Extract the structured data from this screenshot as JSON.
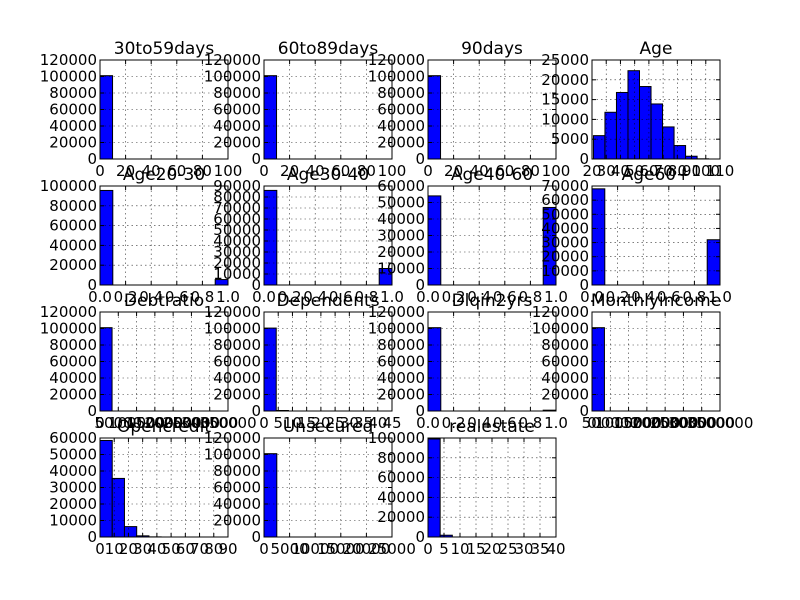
{
  "figure": {
    "background": "#ffffff",
    "bar_color": "#0000ff",
    "edge_color": "#000000",
    "grid": true
  },
  "chart_data": [
    {
      "type": "bar",
      "title": "30to59days",
      "xlabel": "",
      "ylabel": "",
      "xlim": [
        0,
        100
      ],
      "ylim": [
        0,
        120000
      ],
      "xticks": [
        "0",
        "20",
        "40",
        "60",
        "80",
        "100"
      ],
      "yticks": [
        "0",
        "20000",
        "40000",
        "60000",
        "80000",
        "100000",
        "120000"
      ],
      "bins": [
        {
          "x0": 0,
          "x1": 9.8,
          "y": 101000
        },
        {
          "x0": 88.2,
          "x1": 98,
          "y": 0
        }
      ]
    },
    {
      "type": "bar",
      "title": "60to89days",
      "xlabel": "",
      "ylabel": "",
      "xlim": [
        0,
        100
      ],
      "ylim": [
        0,
        120000
      ],
      "xticks": [
        "0",
        "20",
        "40",
        "60",
        "80",
        "100"
      ],
      "yticks": [
        "0",
        "20000",
        "40000",
        "60000",
        "80000",
        "100000",
        "120000"
      ],
      "bins": [
        {
          "x0": 0,
          "x1": 9.8,
          "y": 101000
        },
        {
          "x0": 88.2,
          "x1": 98,
          "y": 0
        }
      ]
    },
    {
      "type": "bar",
      "title": "90days",
      "xlabel": "",
      "ylabel": "",
      "xlim": [
        0,
        100
      ],
      "ylim": [
        0,
        120000
      ],
      "xticks": [
        "0",
        "20",
        "40",
        "60",
        "80",
        "100"
      ],
      "yticks": [
        "0",
        "20000",
        "40000",
        "60000",
        "80000",
        "100000",
        "120000"
      ],
      "bins": [
        {
          "x0": 0,
          "x1": 9.8,
          "y": 101000
        },
        {
          "x0": 88.2,
          "x1": 98,
          "y": 0
        }
      ]
    },
    {
      "type": "bar",
      "title": "Age",
      "xlabel": "",
      "ylabel": "",
      "xlim": [
        20,
        110
      ],
      "ylim": [
        0,
        25000
      ],
      "xticks": [
        "20",
        "30",
        "40",
        "50",
        "60",
        "70",
        "80",
        "90",
        "100",
        "110"
      ],
      "yticks": [
        "0",
        "5000",
        "10000",
        "15000",
        "20000",
        "25000"
      ],
      "bins": [
        {
          "x0": 21,
          "x1": 29.1,
          "y": 5900
        },
        {
          "x0": 29.1,
          "x1": 37.2,
          "y": 11800
        },
        {
          "x0": 37.2,
          "x1": 45.3,
          "y": 16800
        },
        {
          "x0": 45.3,
          "x1": 53.4,
          "y": 22300
        },
        {
          "x0": 53.4,
          "x1": 61.5,
          "y": 18300
        },
        {
          "x0": 61.5,
          "x1": 69.6,
          "y": 13900
        },
        {
          "x0": 69.6,
          "x1": 77.7,
          "y": 8100
        },
        {
          "x0": 77.7,
          "x1": 85.8,
          "y": 3400
        },
        {
          "x0": 85.8,
          "x1": 93.9,
          "y": 700
        },
        {
          "x0": 93.9,
          "x1": 102,
          "y": 50
        }
      ]
    },
    {
      "type": "bar",
      "title": "Age20-30",
      "xlabel": "",
      "ylabel": "",
      "xlim": [
        0,
        1
      ],
      "ylim": [
        0,
        100000
      ],
      "xticks": [
        "0.0",
        "0.2",
        "0.4",
        "0.6",
        "0.8",
        "1.0"
      ],
      "yticks": [
        "0",
        "20000",
        "40000",
        "60000",
        "80000",
        "100000"
      ],
      "bins": [
        {
          "x0": 0,
          "x1": 0.1,
          "y": 95500
        },
        {
          "x0": 0.9,
          "x1": 1.0,
          "y": 5500
        }
      ]
    },
    {
      "type": "bar",
      "title": "Age30-40",
      "xlabel": "",
      "ylabel": "",
      "xlim": [
        0,
        1
      ],
      "ylim": [
        0,
        90000
      ],
      "xticks": [
        "0.0",
        "0.2",
        "0.4",
        "0.6",
        "0.8",
        "1.0"
      ],
      "yticks": [
        "0",
        "10000",
        "20000",
        "30000",
        "40000",
        "50000",
        "60000",
        "70000",
        "80000",
        "90000"
      ],
      "bins": [
        {
          "x0": 0,
          "x1": 0.1,
          "y": 86000
        },
        {
          "x0": 0.9,
          "x1": 1.0,
          "y": 15000
        }
      ]
    },
    {
      "type": "bar",
      "title": "Age40-60",
      "xlabel": "",
      "ylabel": "",
      "xlim": [
        0,
        1
      ],
      "ylim": [
        0,
        60000
      ],
      "xticks": [
        "0.0",
        "0.2",
        "0.4",
        "0.6",
        "0.8",
        "1.0"
      ],
      "yticks": [
        "0",
        "10000",
        "20000",
        "30000",
        "40000",
        "50000",
        "60000"
      ],
      "bins": [
        {
          "x0": 0,
          "x1": 0.1,
          "y": 54000
        },
        {
          "x0": 0.9,
          "x1": 1.0,
          "y": 47000
        }
      ]
    },
    {
      "type": "bar",
      "title": "Age60+",
      "xlabel": "",
      "ylabel": "",
      "xlim": [
        0,
        1
      ],
      "ylim": [
        0,
        70000
      ],
      "xticks": [
        "0.0",
        "0.2",
        "0.4",
        "0.6",
        "0.8",
        "1.0"
      ],
      "yticks": [
        "0",
        "10000",
        "20000",
        "30000",
        "40000",
        "50000",
        "60000",
        "70000"
      ],
      "bins": [
        {
          "x0": 0,
          "x1": 0.1,
          "y": 68000
        },
        {
          "x0": 0.9,
          "x1": 1.0,
          "y": 32000
        }
      ]
    },
    {
      "type": "bar",
      "title": "Debtratio",
      "xlabel": "",
      "ylabel": "",
      "xlim": [
        0,
        350000
      ],
      "ylim": [
        0,
        120000
      ],
      "xticks": [
        "0",
        "50000",
        "100000",
        "150000",
        "200000",
        "250000",
        "300000",
        "350000"
      ],
      "yticks": [
        "0",
        "20000",
        "40000",
        "60000",
        "80000",
        "100000",
        "120000"
      ],
      "bins": [
        {
          "x0": 0,
          "x1": 33000,
          "y": 101000
        }
      ]
    },
    {
      "type": "bar",
      "title": "Dependents",
      "xlabel": "",
      "ylabel": "",
      "xlim": [
        0,
        45
      ],
      "ylim": [
        0,
        120000
      ],
      "xticks": [
        "0",
        "5",
        "10",
        "15",
        "20",
        "25",
        "30",
        "35",
        "40",
        "45"
      ],
      "yticks": [
        "0",
        "20000",
        "40000",
        "60000",
        "80000",
        "100000",
        "120000"
      ],
      "bins": [
        {
          "x0": 0,
          "x1": 4.3,
          "y": 100500
        },
        {
          "x0": 4.3,
          "x1": 8.6,
          "y": 600
        }
      ]
    },
    {
      "type": "bar",
      "title": "Dlqin2yrs",
      "xlabel": "",
      "ylabel": "",
      "xlim": [
        0,
        1
      ],
      "ylim": [
        0,
        120000
      ],
      "xticks": [
        "0.0",
        "0.2",
        "0.4",
        "0.6",
        "0.8",
        "1.0"
      ],
      "yticks": [
        "0",
        "20000",
        "40000",
        "60000",
        "80000",
        "100000",
        "120000"
      ],
      "bins": [
        {
          "x0": 0,
          "x1": 0.1,
          "y": 101000
        },
        {
          "x0": 0.9,
          "x1": 1.0,
          "y": 1000
        }
      ]
    },
    {
      "type": "bar",
      "title": "Monthlyincome",
      "xlabel": "",
      "ylabel": "",
      "xlim": [
        0,
        3500000
      ],
      "ylim": [
        0,
        120000
      ],
      "xticks": [
        "0",
        "500000",
        "1000000",
        "1500000",
        "2000000",
        "2500000",
        "3000000",
        "3500000"
      ],
      "yticks": [
        "0",
        "20000",
        "40000",
        "60000",
        "80000",
        "100000",
        "120000"
      ],
      "bins": [
        {
          "x0": 0,
          "x1": 340000,
          "y": 101000
        }
      ]
    },
    {
      "type": "bar",
      "title": "Opencredit",
      "xlabel": "",
      "ylabel": "",
      "xlim": [
        0,
        90
      ],
      "ylim": [
        0,
        60000
      ],
      "xticks": [
        "0",
        "10",
        "20",
        "30",
        "40",
        "50",
        "60",
        "70",
        "80",
        "90"
      ],
      "yticks": [
        "0",
        "10000",
        "20000",
        "30000",
        "40000",
        "50000",
        "60000"
      ],
      "bins": [
        {
          "x0": 0,
          "x1": 8.6,
          "y": 58500
        },
        {
          "x0": 8.6,
          "x1": 17.2,
          "y": 35500
        },
        {
          "x0": 17.2,
          "x1": 25.8,
          "y": 6300
        },
        {
          "x0": 25.8,
          "x1": 34.4,
          "y": 700
        },
        {
          "x0": 34.4,
          "x1": 43,
          "y": 80
        }
      ]
    },
    {
      "type": "bar",
      "title": "Unsecured",
      "xlabel": "",
      "ylabel": "",
      "xlim": [
        0,
        25000
      ],
      "ylim": [
        0,
        120000
      ],
      "xticks": [
        "0",
        "5000",
        "10000",
        "15000",
        "20000",
        "25000"
      ],
      "yticks": [
        "0",
        "20000",
        "40000",
        "60000",
        "80000",
        "100000",
        "120000"
      ],
      "bins": [
        {
          "x0": 0,
          "x1": 2500,
          "y": 101000
        }
      ]
    },
    {
      "type": "bar",
      "title": "realestate",
      "xlabel": "",
      "ylabel": "",
      "xlim": [
        0,
        40
      ],
      "ylim": [
        0,
        100000
      ],
      "xticks": [
        "0",
        "5",
        "10",
        "15",
        "20",
        "25",
        "30",
        "35",
        "40"
      ],
      "yticks": [
        "0",
        "20000",
        "40000",
        "60000",
        "80000",
        "100000"
      ],
      "bins": [
        {
          "x0": 0,
          "x1": 3.8,
          "y": 99000
        },
        {
          "x0": 3.8,
          "x1": 7.6,
          "y": 1800
        }
      ]
    }
  ]
}
